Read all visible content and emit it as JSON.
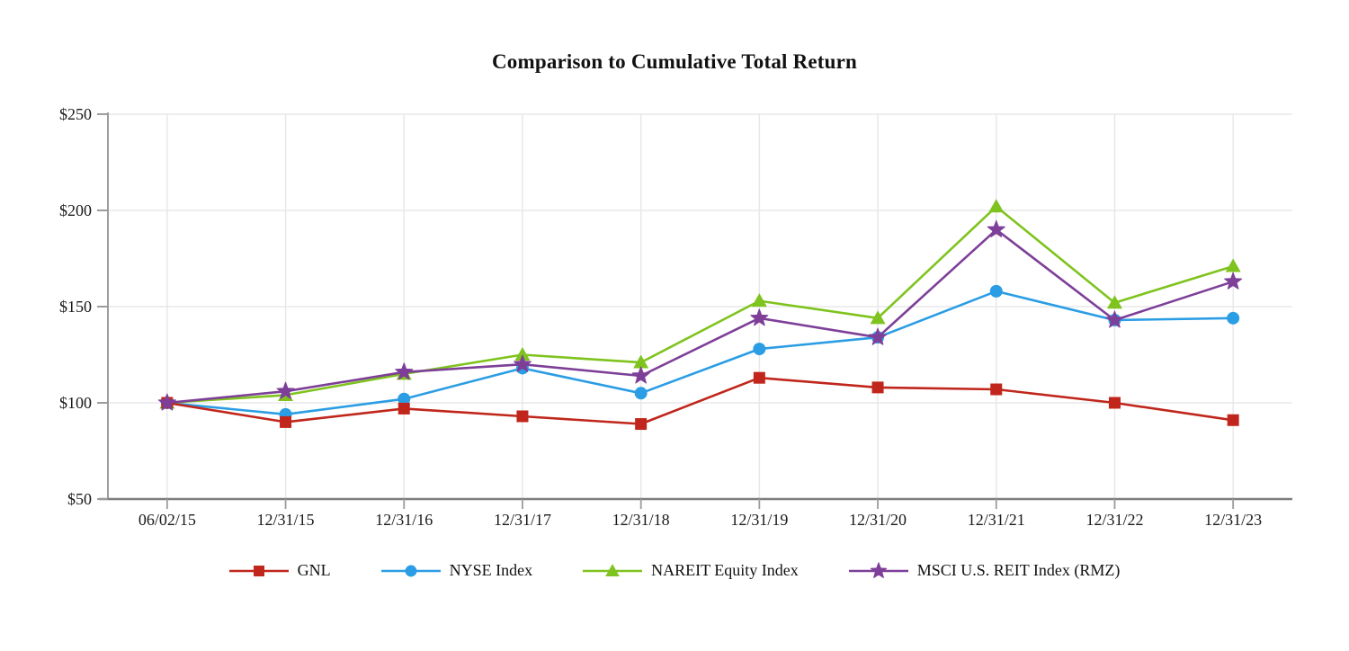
{
  "chart_data": {
    "type": "line",
    "title": "Comparison to Cumulative Total Return",
    "x_labels": [
      "06/02/15",
      "12/31/15",
      "12/31/16",
      "12/31/17",
      "12/31/18",
      "12/31/19",
      "12/31/20",
      "12/31/21",
      "12/31/22",
      "12/31/23"
    ],
    "y_ticks": [
      {
        "label": "$50",
        "value": 50
      },
      {
        "label": "$100",
        "value": 100
      },
      {
        "label": "$150",
        "value": 150
      },
      {
        "label": "$200",
        "value": 200
      },
      {
        "label": "$250",
        "value": 250
      }
    ],
    "ylim": [
      50,
      250
    ],
    "grid": true,
    "legend_position": "bottom",
    "series": [
      {
        "name": "GNL",
        "marker": "square",
        "color": "#c0261b",
        "values": [
          100,
          90,
          97,
          93,
          89,
          113,
          108,
          107,
          100,
          91
        ]
      },
      {
        "name": "NYSE Index",
        "marker": "circle",
        "color": "#2b9de4",
        "values": [
          100,
          94,
          102,
          118,
          105,
          128,
          134,
          158,
          143,
          144
        ]
      },
      {
        "name": "NAREIT Equity Index",
        "marker": "triangle",
        "color": "#7fc31e",
        "values": [
          100,
          104,
          115,
          125,
          121,
          153,
          144,
          202,
          152,
          171
        ]
      },
      {
        "name": "MSCI U.S. REIT Index (RMZ)",
        "marker": "star",
        "color": "#7d3f98",
        "values": [
          100,
          106,
          116,
          120,
          114,
          144,
          134,
          190,
          143,
          163
        ]
      }
    ]
  },
  "colors": {
    "grid": "#e8e8e8",
    "axis": "#9c9c9c",
    "bottom_axis": "#7d7d7d",
    "text": "#1a1a1a"
  }
}
